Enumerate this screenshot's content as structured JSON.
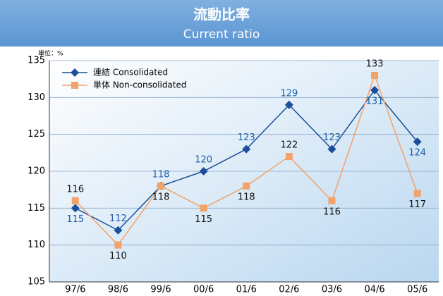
{
  "chart_data": {
    "type": "line",
    "title": "流動比率",
    "subtitle": "Current ratio",
    "unit": "単位：%",
    "categories": [
      "97/6",
      "98/6",
      "99/6",
      "00/6",
      "01/6",
      "02/6",
      "03/6",
      "04/6",
      "05/6"
    ],
    "series": [
      {
        "name": "連結 Consolidated",
        "color": "#1c4f98",
        "marker": "diamond",
        "values": [
          115,
          112,
          118,
          120,
          123,
          129,
          123,
          131,
          124
        ]
      },
      {
        "name": "単体 Non-consolidated",
        "color": "#f3a26a",
        "marker": "square",
        "values": [
          116,
          110,
          118,
          115,
          118,
          122,
          116,
          133,
          117
        ]
      }
    ],
    "ylim": [
      105,
      135
    ],
    "yticks": [
      105,
      110,
      115,
      120,
      125,
      130,
      135
    ],
    "grid": true
  }
}
